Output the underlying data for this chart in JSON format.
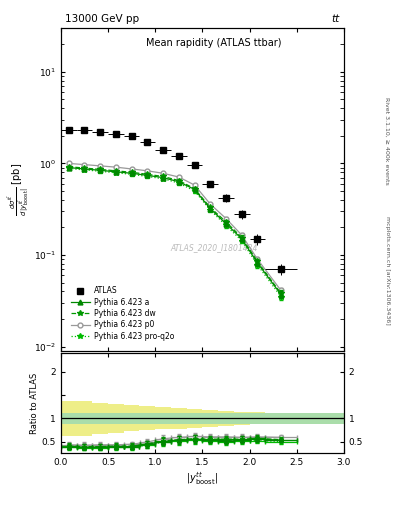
{
  "title_top": "13000 GeV pp",
  "title_top_right": "tt",
  "title_center": "Mean rapidity (ATLAS ttbar)",
  "watermark": "ATLAS_2020_I1801434",
  "right_label_top": "Rivet 3.1.10, ≥ 400k events",
  "right_label_bottom": "mcplots.cern.ch [arXiv:1306.3436]",
  "ylabel_ratio": "Ratio to ATLAS",
  "xlim": [
    0,
    3
  ],
  "ylim_main": [
    0.009,
    30
  ],
  "ylim_ratio": [
    0.25,
    2.4
  ],
  "atlas_x": [
    0.083,
    0.25,
    0.417,
    0.583,
    0.75,
    0.917,
    1.083,
    1.25,
    1.417,
    1.583,
    1.75,
    1.917,
    2.083,
    2.333
  ],
  "atlas_xerr": [
    0.083,
    0.083,
    0.083,
    0.083,
    0.083,
    0.083,
    0.083,
    0.083,
    0.083,
    0.083,
    0.083,
    0.083,
    0.083,
    0.167
  ],
  "atlas_y": [
    2.3,
    2.3,
    2.2,
    2.1,
    2.0,
    1.7,
    1.4,
    1.2,
    0.95,
    0.6,
    0.42,
    0.28,
    0.15,
    0.07
  ],
  "atlas_yerr": [
    0.15,
    0.15,
    0.12,
    0.12,
    0.12,
    0.1,
    0.1,
    0.08,
    0.07,
    0.05,
    0.04,
    0.03,
    0.02,
    0.01
  ],
  "py_a_x": [
    0.083,
    0.25,
    0.417,
    0.583,
    0.75,
    0.917,
    1.083,
    1.25,
    1.417,
    1.583,
    1.75,
    1.917,
    2.083,
    2.333
  ],
  "py_a_y": [
    0.9,
    0.87,
    0.84,
    0.81,
    0.78,
    0.74,
    0.7,
    0.63,
    0.52,
    0.32,
    0.22,
    0.15,
    0.082,
    0.037
  ],
  "py_a_yerr": [
    0.025,
    0.025,
    0.025,
    0.025,
    0.025,
    0.025,
    0.025,
    0.025,
    0.02,
    0.015,
    0.012,
    0.009,
    0.006,
    0.003
  ],
  "py_dw_x": [
    0.083,
    0.25,
    0.417,
    0.583,
    0.75,
    0.917,
    1.083,
    1.25,
    1.417,
    1.583,
    1.75,
    1.917,
    2.083,
    2.333
  ],
  "py_dw_y": [
    0.92,
    0.89,
    0.86,
    0.83,
    0.8,
    0.76,
    0.72,
    0.65,
    0.53,
    0.33,
    0.23,
    0.155,
    0.085,
    0.038
  ],
  "py_dw_yerr": [
    0.025,
    0.025,
    0.025,
    0.025,
    0.025,
    0.025,
    0.025,
    0.025,
    0.02,
    0.015,
    0.012,
    0.009,
    0.006,
    0.003
  ],
  "py_p0_x": [
    0.083,
    0.25,
    0.417,
    0.583,
    0.75,
    0.917,
    1.083,
    1.25,
    1.417,
    1.583,
    1.75,
    1.917,
    2.083,
    2.333
  ],
  "py_p0_y": [
    1.0,
    0.97,
    0.94,
    0.91,
    0.87,
    0.83,
    0.78,
    0.71,
    0.58,
    0.36,
    0.25,
    0.165,
    0.09,
    0.041
  ],
  "py_p0_yerr": [
    0.02,
    0.02,
    0.02,
    0.02,
    0.02,
    0.02,
    0.02,
    0.02,
    0.018,
    0.013,
    0.01,
    0.008,
    0.005,
    0.003
  ],
  "py_q2_x": [
    0.083,
    0.25,
    0.417,
    0.583,
    0.75,
    0.917,
    1.083,
    1.25,
    1.417,
    1.583,
    1.75,
    1.917,
    2.083,
    2.333
  ],
  "py_q2_y": [
    0.88,
    0.85,
    0.82,
    0.79,
    0.76,
    0.72,
    0.68,
    0.61,
    0.5,
    0.31,
    0.21,
    0.143,
    0.078,
    0.035
  ],
  "py_q2_yerr": [
    0.025,
    0.025,
    0.025,
    0.025,
    0.025,
    0.025,
    0.025,
    0.025,
    0.02,
    0.015,
    0.012,
    0.009,
    0.006,
    0.003
  ],
  "band_edges": [
    0.0,
    0.167,
    0.333,
    0.5,
    0.667,
    0.833,
    1.0,
    1.167,
    1.333,
    1.5,
    1.667,
    1.833,
    2.0,
    2.167,
    2.5,
    3.0
  ],
  "green_lo": [
    0.88,
    0.88,
    0.88,
    0.88,
    0.88,
    0.88,
    0.88,
    0.88,
    0.88,
    0.88,
    0.88,
    0.88,
    0.88,
    0.88,
    0.88,
    0.88
  ],
  "green_hi": [
    1.12,
    1.12,
    1.12,
    1.12,
    1.12,
    1.12,
    1.12,
    1.12,
    1.12,
    1.12,
    1.12,
    1.12,
    1.12,
    1.12,
    1.12,
    1.12
  ],
  "yellow_lo": [
    0.62,
    0.62,
    0.66,
    0.69,
    0.72,
    0.74,
    0.76,
    0.78,
    0.8,
    0.82,
    0.84,
    0.86,
    0.87,
    0.88,
    0.89,
    0.9
  ],
  "yellow_hi": [
    1.38,
    1.38,
    1.34,
    1.31,
    1.28,
    1.26,
    1.24,
    1.22,
    1.2,
    1.18,
    1.16,
    1.14,
    1.13,
    1.12,
    1.11,
    1.11
  ],
  "ratio_py_a_y": [
    0.39,
    0.38,
    0.38,
    0.39,
    0.39,
    0.44,
    0.5,
    0.53,
    0.55,
    0.53,
    0.52,
    0.54,
    0.55,
    0.53
  ],
  "ratio_py_dw_y": [
    0.4,
    0.39,
    0.39,
    0.4,
    0.4,
    0.45,
    0.51,
    0.54,
    0.56,
    0.55,
    0.55,
    0.55,
    0.57,
    0.54
  ],
  "ratio_py_p0_y": [
    0.43,
    0.42,
    0.43,
    0.43,
    0.44,
    0.49,
    0.56,
    0.59,
    0.61,
    0.6,
    0.6,
    0.59,
    0.6,
    0.59
  ],
  "ratio_py_q2_y": [
    0.38,
    0.37,
    0.37,
    0.38,
    0.38,
    0.42,
    0.49,
    0.51,
    0.53,
    0.52,
    0.5,
    0.51,
    0.52,
    0.5
  ],
  "ratio_yerr": [
    0.06,
    0.06,
    0.06,
    0.06,
    0.06,
    0.07,
    0.08,
    0.08,
    0.08,
    0.07,
    0.07,
    0.07,
    0.06,
    0.05
  ],
  "color_atlas": "#000000",
  "color_py_a": "#008800",
  "color_py_dw": "#009900",
  "color_py_p0": "#999999",
  "color_py_q2": "#00bb00",
  "color_green_band": "#aaddaa",
  "color_yellow_band": "#eeee88"
}
